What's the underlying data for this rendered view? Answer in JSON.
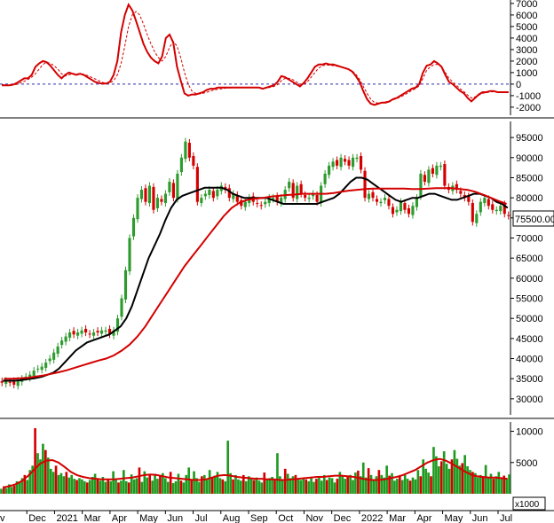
{
  "chart_data": [
    {
      "type": "line",
      "panel": "oscillator",
      "ylim": [
        -2700,
        7300
      ],
      "yticks": [
        "7000",
        "6000",
        "5000",
        "4000",
        "3000",
        "2000",
        "1000",
        "0",
        "-1000",
        "-2000"
      ],
      "ytick_values": [
        7000,
        6000,
        5000,
        4000,
        3000,
        2000,
        1000,
        0,
        -1000,
        -2000
      ],
      "zero_line": true,
      "series": [
        {
          "key": "osc",
          "color": "#d40000",
          "style": "solid",
          "values": [
            -100,
            -100,
            -100,
            -50,
            100,
            300,
            500,
            500,
            800,
            1500,
            1800,
            2000,
            1900,
            1600,
            1200,
            800,
            500,
            800,
            1000,
            900,
            800,
            900,
            800,
            600,
            400,
            200,
            100,
            50,
            50,
            200,
            800,
            2000,
            4500,
            6000,
            6900,
            6400,
            5500,
            4500,
            3500,
            2800,
            2300,
            2000,
            1800,
            2400,
            4000,
            4300,
            3600,
            1500,
            300,
            -800,
            -1000,
            -900,
            -900,
            -800,
            -700,
            -500,
            -400,
            -400,
            -300,
            -300,
            -300,
            -300,
            -300,
            -300,
            -300,
            -300,
            -300,
            -300,
            -300,
            -300,
            -400,
            -300,
            -200,
            -100,
            200,
            700,
            600,
            400,
            200,
            0,
            -200,
            100,
            500,
            1000,
            1500,
            1700,
            1700,
            1800,
            1700,
            1700,
            1600,
            1500,
            1400,
            1300,
            1100,
            700,
            200,
            -600,
            -1300,
            -1700,
            -1800,
            -1700,
            -1600,
            -1600,
            -1500,
            -1300,
            -1200,
            -1000,
            -800,
            -600,
            -400,
            -300,
            0,
            1000,
            1600,
            1700,
            2000,
            1800,
            1500,
            800,
            200,
            0,
            -300,
            -600,
            -800,
            -1200,
            -1500,
            -1200,
            -900,
            -700,
            -700,
            -600,
            -600,
            -700,
            -700,
            -700,
            -700
          ]
        },
        {
          "key": "osc_signal",
          "color": "#d40000",
          "style": "dashed",
          "values": [
            -50,
            -80,
            -90,
            -80,
            -20,
            100,
            250,
            400,
            600,
            900,
            1300,
            1700,
            1900,
            1800,
            1600,
            1300,
            900,
            700,
            800,
            900,
            900,
            900,
            850,
            750,
            600,
            450,
            300,
            150,
            100,
            100,
            300,
            800,
            1800,
            3300,
            5000,
            6000,
            6300,
            6000,
            5200,
            4300,
            3500,
            2800,
            2300,
            2000,
            2400,
            3200,
            3700,
            3300,
            2300,
            1000,
            0,
            -600,
            -800,
            -850,
            -800,
            -700,
            -600,
            -500,
            -450,
            -400,
            -350,
            -330,
            -320,
            -310,
            -300,
            -300,
            -300,
            -300,
            -300,
            -300,
            -350,
            -330,
            -280,
            -200,
            -50,
            300,
            500,
            500,
            400,
            200,
            0,
            0,
            200,
            600,
            1000,
            1400,
            1600,
            1650,
            1650,
            1600,
            1550,
            1500,
            1400,
            1300,
            1150,
            850,
            400,
            -200,
            -800,
            -1300,
            -1600,
            -1650,
            -1600,
            -1550,
            -1450,
            -1350,
            -1250,
            -1100,
            -950,
            -750,
            -550,
            -400,
            -150,
            500,
            1200,
            1500,
            1700,
            1700,
            1500,
            1000,
            500,
            200,
            -100,
            -400,
            -650,
            -950,
            -1200,
            -1100,
            -950,
            -800,
            -750,
            -680,
            -650,
            -680,
            -700,
            -700,
            -700
          ]
        }
      ]
    },
    {
      "type": "candlestick",
      "panel": "price",
      "ylim": [
        26000,
        99000
      ],
      "yticks": [
        "95000",
        "90000",
        "85000",
        "80000",
        "75000",
        "70000",
        "65000",
        "60000",
        "55000",
        "50000",
        "45000",
        "40000",
        "35000",
        "30000"
      ],
      "ytick_values": [
        95000,
        90000,
        85000,
        80000,
        75000,
        70000,
        65000,
        60000,
        55000,
        50000,
        45000,
        40000,
        35000,
        30000
      ],
      "last_price_label": "75500.00",
      "last_price_value": 75500,
      "close": [
        34000,
        34500,
        34000,
        33500,
        34500,
        35000,
        35500,
        36000,
        37000,
        37500,
        38000,
        39000,
        40000,
        41500,
        43000,
        44500,
        45500,
        46500,
        46000,
        46500,
        47000,
        46500,
        46000,
        46500,
        46500,
        47000,
        47000,
        46000,
        47000,
        50000,
        55000,
        62000,
        70000,
        75000,
        80000,
        82000,
        79000,
        83000,
        77000,
        80000,
        79000,
        81000,
        84000,
        80000,
        86000,
        90000,
        94000,
        90000,
        88000,
        79000,
        80000,
        81000,
        82000,
        80000,
        82000,
        83000,
        82000,
        80000,
        81000,
        79000,
        78000,
        79000,
        80000,
        79000,
        78500,
        78000,
        79000,
        80000,
        80000,
        79000,
        80000,
        82000,
        84000,
        80000,
        83000,
        81000,
        80000,
        80000,
        81000,
        79000,
        83000,
        86000,
        88000,
        89000,
        88000,
        90000,
        89000,
        88000,
        90000,
        90000,
        87000,
        80000,
        81000,
        80000,
        79000,
        79000,
        80000,
        78000,
        76000,
        77000,
        79000,
        77000,
        76000,
        78000,
        80000,
        86000,
        84000,
        87000,
        86000,
        88000,
        88000,
        83000,
        82000,
        83000,
        82000,
        81000,
        80000,
        79000,
        74000,
        76000,
        79000,
        80000,
        78000,
        77000,
        77000,
        78000,
        76000,
        75500
      ],
      "series": [
        {
          "key": "ma_fast",
          "color": "#000000",
          "values": [
            34500,
            34500,
            34500,
            34600,
            34800,
            35000,
            35200,
            35500,
            36000,
            36500,
            37500,
            39000,
            40500,
            42000,
            43000,
            44000,
            44500,
            45000,
            45500,
            46000,
            47000,
            48000,
            50000,
            53000,
            57000,
            61000,
            65000,
            68000,
            71000,
            74500,
            77500,
            79500,
            80500,
            81000,
            81500,
            82000,
            82500,
            82500,
            82500,
            82500,
            82000,
            81000,
            80500,
            80000,
            80000,
            80000,
            80000,
            80000,
            79500,
            79000,
            78500,
            78500,
            78500,
            78500,
            78500,
            78500,
            78500,
            79000,
            79500,
            80000,
            81000,
            82500,
            84000,
            85000,
            85000,
            84500,
            83500,
            82500,
            81500,
            80500,
            79500,
            79000,
            79500,
            80000,
            80000,
            80500,
            81000,
            81000,
            80500,
            80000,
            79500,
            79500,
            80000,
            80500,
            81000,
            81000,
            80500,
            80000,
            79000,
            78500,
            77500
          ]
        },
        {
          "key": "ma_slow",
          "color": "#d40000",
          "values": [
            35000,
            35000,
            35100,
            35200,
            35500,
            35800,
            36200,
            36600,
            37100,
            37700,
            38300,
            38900,
            39500,
            40000,
            40800,
            42000,
            43500,
            45500,
            48000,
            51000,
            54000,
            57000,
            60000,
            63000,
            65500,
            68000,
            70500,
            73000,
            75500,
            77500,
            78800,
            79500,
            79800,
            80000,
            80300,
            80500,
            80700,
            80800,
            81000,
            81000,
            81000,
            81000,
            81200,
            81500,
            81800,
            82000,
            82200,
            82300,
            82300,
            82300,
            82300,
            82300,
            82200,
            82200,
            82300,
            82400,
            82400,
            82400,
            82200,
            82000,
            81500,
            80800,
            80000,
            79200,
            78500
          ]
        }
      ]
    },
    {
      "type": "bar",
      "panel": "volume",
      "ylim": [
        0,
        11500
      ],
      "yticks": [
        "10000",
        "5000"
      ],
      "ytick_values": [
        10000,
        5000
      ],
      "unit_label": "x1000",
      "xticks": [
        "v",
        "Dec",
        "2021",
        "Mar",
        "Apr",
        "May",
        "Jun",
        "Jul",
        "Aug",
        "Sep",
        "Oct",
        "Nov",
        "Dec",
        "2022",
        "Mar",
        "Apr",
        "May",
        "Jun",
        "Jul"
      ],
      "values": [
        800,
        1200,
        900,
        1500,
        1100,
        1300,
        2000,
        1800,
        2500,
        3000,
        2200,
        3800,
        4500,
        10500,
        6500,
        5500,
        8000,
        7000,
        5800,
        4000,
        3500,
        4500,
        3000,
        3300,
        2800,
        3500,
        2600,
        3000,
        2400,
        2200,
        2500,
        2300,
        2000,
        1800,
        2200,
        2700,
        3200,
        2500,
        2100,
        2700,
        1900,
        2400,
        2000,
        3600,
        2300,
        1800,
        2100,
        3800,
        2000,
        1800,
        3100,
        2300,
        2500,
        4200,
        1900,
        3600,
        2600,
        3000,
        2100,
        3200,
        2400,
        2900,
        3300,
        2500,
        1900,
        3500,
        1700,
        2000,
        3200,
        2100,
        1800,
        3000,
        4200,
        2300,
        3600,
        2500,
        1900,
        2800,
        3000,
        2200,
        3800,
        2700,
        2900,
        3500,
        2500,
        2300,
        2000,
        8500,
        3300,
        2300,
        3000,
        2300,
        2100,
        3000,
        2000,
        2800,
        2500,
        2200,
        2600,
        2100,
        1800,
        3400,
        2300,
        2500,
        2700,
        2400,
        6500,
        2800,
        2200,
        4000,
        3200,
        2500,
        2800,
        3000,
        2400,
        2200,
        2500,
        2300,
        2000,
        2600,
        1900,
        2400,
        2800,
        2100,
        3000,
        2200,
        2600,
        2500,
        1800,
        2400,
        3500,
        2800,
        2400,
        2700,
        3000,
        2200,
        3400,
        3700,
        2800,
        5000,
        2600,
        4100,
        3000,
        2300,
        2800,
        3800,
        3000,
        2600,
        4500,
        2900,
        3300,
        2100,
        2400,
        2900,
        2200,
        3000,
        2400,
        2100,
        2600,
        2300,
        3800,
        2800,
        5500,
        4000,
        3400,
        2800,
        7500,
        6000,
        4400,
        5200,
        6800,
        4800,
        4000,
        5500,
        7000,
        5600,
        4500,
        4900,
        6200,
        4400,
        3800,
        3500,
        3300,
        2600,
        3000,
        2700,
        4600,
        2500,
        3200,
        2400,
        2800,
        3500,
        2600,
        2900,
        2400,
        3100
      ],
      "series": [
        {
          "key": "vol_ma",
          "color": "#d40000",
          "values": [
            1000,
            1200,
            1500,
            2000,
            2800,
            3800,
            4800,
            5300,
            5400,
            5000,
            4300,
            3500,
            3000,
            2700,
            2500,
            2400,
            2300,
            2300,
            2300,
            2400,
            2500,
            2600,
            2800,
            3000,
            3100,
            3000,
            2800,
            2600,
            2500,
            2400,
            2300,
            2200,
            2200,
            2300,
            2600,
            2900,
            3000,
            2900,
            2700,
            2600,
            2500,
            2400,
            2400,
            2300,
            2300,
            2200,
            2200,
            2300,
            2400,
            2500,
            2600,
            2700,
            2700,
            2800,
            2900,
            2900,
            2800,
            2700,
            2500,
            2300,
            2200,
            2200,
            2300,
            2500,
            2700,
            3000,
            3400,
            3800,
            4400,
            5000,
            5400,
            5600,
            5300,
            4800,
            4200,
            3600,
            3100,
            2800,
            2700,
            2600,
            2600,
            2500,
            2400
          ]
        }
      ]
    }
  ]
}
